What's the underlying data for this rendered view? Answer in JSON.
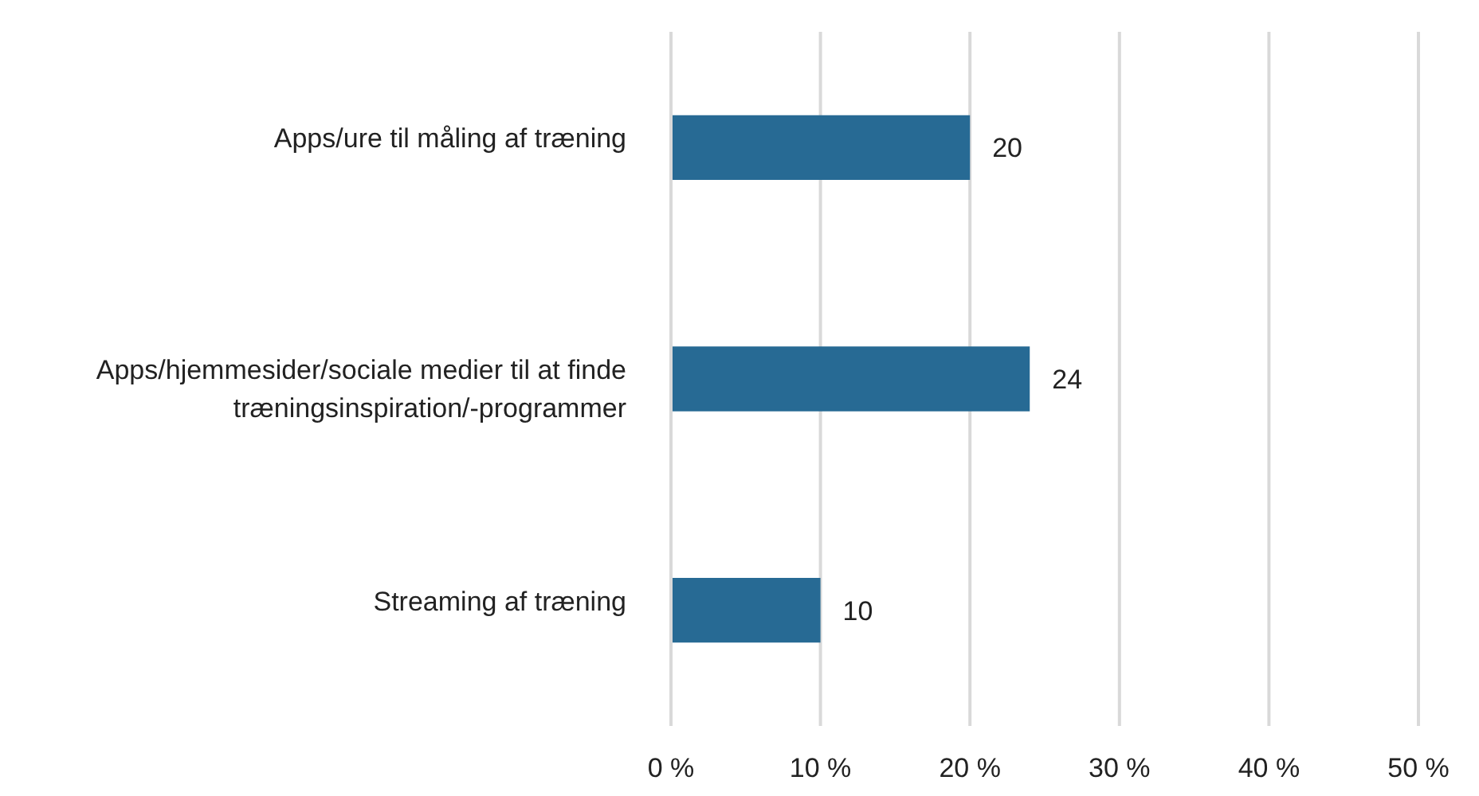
{
  "chart_data": {
    "type": "bar",
    "orientation": "horizontal",
    "categories": [
      "Apps/ure til måling af træning",
      "Apps/hjemmesider/sociale medier til at finde træningsinspiration/-programmer",
      "Streaming af træning"
    ],
    "values": [
      20,
      24,
      10
    ],
    "color": "#276a94",
    "data_labels": true,
    "xlim": [
      0,
      50
    ],
    "xticks": [
      {
        "value": 0,
        "label": "0 %"
      },
      {
        "value": 10,
        "label": "10 %"
      },
      {
        "value": 20,
        "label": "20 %"
      },
      {
        "value": 30,
        "label": "30 %"
      },
      {
        "value": 40,
        "label": "40 %"
      },
      {
        "value": 50,
        "label": "50 %"
      }
    ],
    "grid": "x",
    "legend": false
  }
}
